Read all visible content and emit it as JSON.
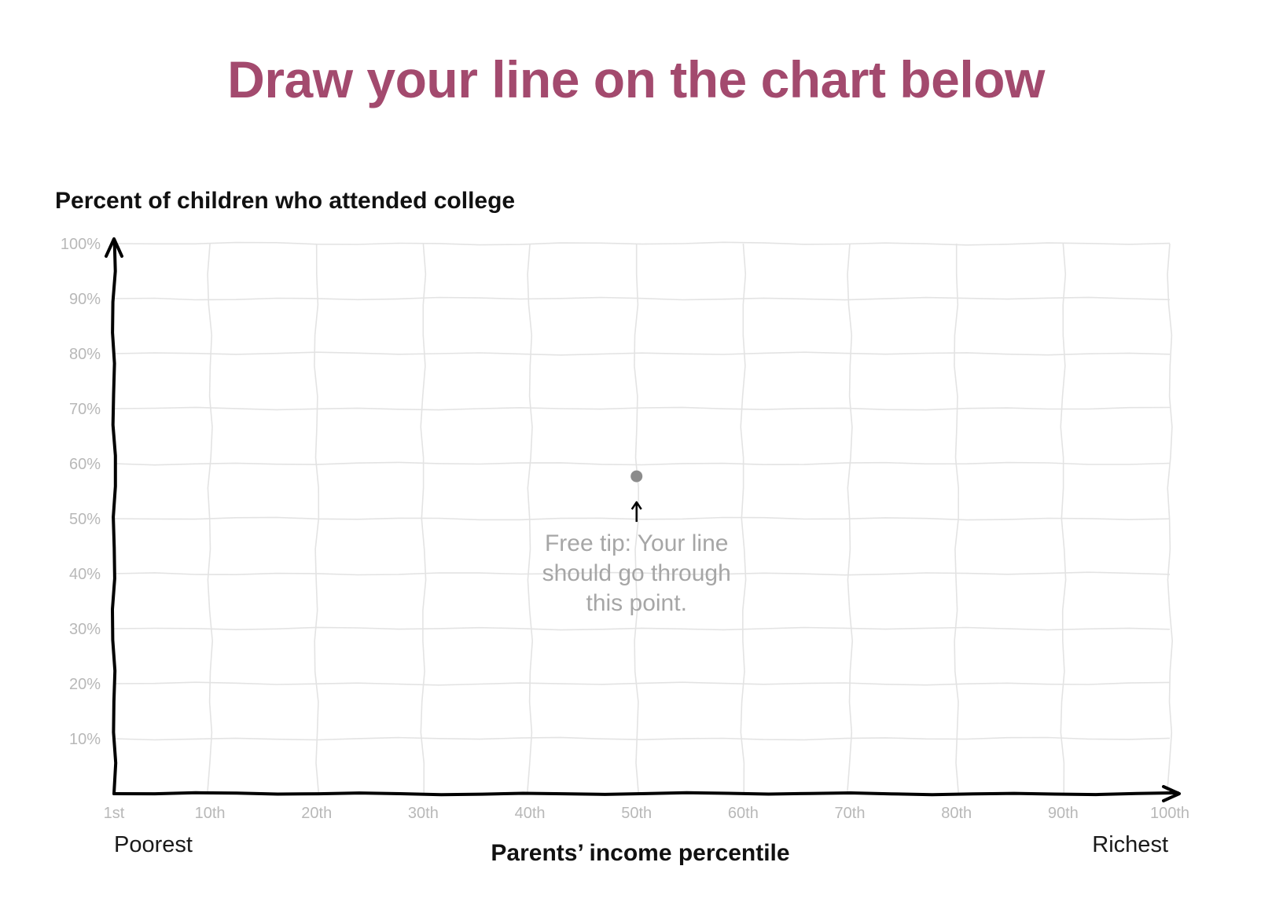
{
  "title": "Draw your line on the chart below",
  "colors": {
    "title": "#a34a6e",
    "grid": "#e3e3e3",
    "tick_label": "#b8b8b8",
    "axis": "#000000",
    "hint_point": "#8c8c8c",
    "tip_text": "#a6a6a6"
  },
  "icons": {
    "y_axis_arrow": "arrow-up-icon",
    "x_axis_arrow": "arrow-right-icon",
    "tip_arrow": "arrow-up-icon"
  },
  "chart_data": {
    "type": "line",
    "interaction": "draw-your-line",
    "ylabel": "Percent of children who attended college",
    "xlabel": "Parents’ income percentile",
    "x_end_labels": {
      "left": "Poorest",
      "right": "Richest"
    },
    "xlim": [
      1,
      100
    ],
    "ylim": [
      0,
      100
    ],
    "x_ticks": [
      {
        "value": 1,
        "label": "1st"
      },
      {
        "value": 10,
        "label": "10th"
      },
      {
        "value": 20,
        "label": "20th"
      },
      {
        "value": 30,
        "label": "30th"
      },
      {
        "value": 40,
        "label": "40th"
      },
      {
        "value": 50,
        "label": "50th"
      },
      {
        "value": 60,
        "label": "60th"
      },
      {
        "value": 70,
        "label": "70th"
      },
      {
        "value": 80,
        "label": "80th"
      },
      {
        "value": 90,
        "label": "90th"
      },
      {
        "value": 100,
        "label": "100th"
      }
    ],
    "y_ticks": [
      {
        "value": 10,
        "label": "10%"
      },
      {
        "value": 20,
        "label": "20%"
      },
      {
        "value": 30,
        "label": "30%"
      },
      {
        "value": 40,
        "label": "40%"
      },
      {
        "value": 50,
        "label": "50%"
      },
      {
        "value": 60,
        "label": "60%"
      },
      {
        "value": 70,
        "label": "70%"
      },
      {
        "value": 80,
        "label": "80%"
      },
      {
        "value": 90,
        "label": "90%"
      },
      {
        "value": 100,
        "label": "100%"
      }
    ],
    "grid": true,
    "series": [],
    "hint_point": {
      "x": 50,
      "y": 57.7
    },
    "annotation": {
      "lines": [
        "Free tip: Your line",
        "should go through",
        "this point."
      ]
    }
  }
}
